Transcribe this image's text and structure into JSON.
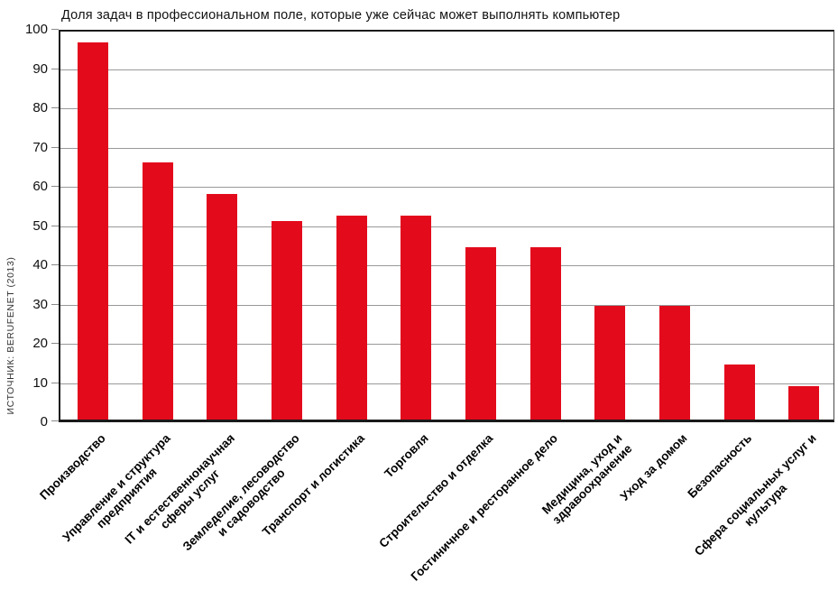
{
  "source_label": "ИСТОЧНИК: BERUFENET (2013)",
  "chart_data": {
    "type": "bar",
    "title": "Доля задач в профессиональном поле, которые уже сейчас может выполнять компьютер",
    "xlabel": "",
    "ylabel": "",
    "categories": [
      "Производство",
      "Управление и структура\nпредприятия",
      "IT и естественнонаучная\nсферы услуг",
      "Земледелие, лесоводство\nи садоводство",
      "Транспорт и логистика",
      "Торговля",
      "Строительство и отделка",
      "Гостиничное и ресторанное дело",
      "Медицина, уход и\nздравоохранение",
      "Уход за домом",
      "Безопасность",
      "Сфера социальных услуг и\nкультура"
    ],
    "values": [
      96,
      65.5,
      57.5,
      50.5,
      52,
      52,
      44,
      44,
      29,
      29,
      14,
      8.5
    ],
    "ylim": [
      0,
      100
    ],
    "yticks": [
      0,
      10,
      20,
      30,
      40,
      50,
      60,
      70,
      80,
      90,
      100
    ],
    "grid": "horizontal",
    "legend": "none",
    "bar_color": "#e30a1c",
    "grid_color": "#999999",
    "axis_color": "#1a1a1a"
  }
}
